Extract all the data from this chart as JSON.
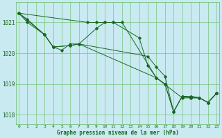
{
  "background_color": "#c8eaf0",
  "grid_color": "#66bb66",
  "line_color": "#1a6620",
  "xlabel": "Graphe pression niveau de la mer (hPa)",
  "ylim": [
    1017.7,
    1021.65
  ],
  "xlim": [
    -0.3,
    23.3
  ],
  "yticks": [
    1018,
    1019,
    1020,
    1021
  ],
  "xticks": [
    0,
    1,
    2,
    3,
    4,
    5,
    6,
    7,
    8,
    9,
    10,
    11,
    12,
    13,
    14,
    15,
    16,
    17,
    18,
    19,
    20,
    21,
    22,
    23
  ],
  "series": [
    {
      "x": [
        0,
        1,
        3,
        4,
        5,
        6,
        7,
        9,
        10,
        11,
        14,
        15,
        16,
        19,
        20,
        21,
        22,
        23
      ],
      "y": [
        1021.3,
        1021.0,
        1020.6,
        1020.2,
        1020.1,
        1020.3,
        1020.3,
        1020.8,
        1021.0,
        1021.0,
        1020.5,
        1019.6,
        1019.2,
        1018.55,
        1018.55,
        1018.55,
        1018.4,
        1018.7
      ]
    },
    {
      "x": [
        0,
        1,
        3,
        4,
        6,
        7,
        15,
        16,
        17,
        18,
        19,
        20,
        21,
        22,
        23
      ],
      "y": [
        1021.3,
        1021.1,
        1020.6,
        1020.2,
        1020.25,
        1020.3,
        1019.9,
        1019.55,
        1019.25,
        1018.1,
        1018.6,
        1018.55,
        1018.55,
        1018.4,
        1018.7
      ]
    },
    {
      "x": [
        0,
        3,
        4,
        6,
        7,
        16,
        17,
        18,
        19,
        20,
        21,
        22,
        23
      ],
      "y": [
        1021.3,
        1020.6,
        1020.2,
        1020.25,
        1020.3,
        1019.2,
        1019.0,
        1018.1,
        1018.6,
        1018.6,
        1018.55,
        1018.4,
        1018.7
      ]
    },
    {
      "x": [
        0,
        8,
        9,
        10,
        11,
        12,
        16,
        17,
        18,
        19,
        20,
        21,
        22,
        23
      ],
      "y": [
        1021.3,
        1021.0,
        1021.0,
        1021.0,
        1021.0,
        1021.0,
        1019.2,
        1019.0,
        1018.1,
        1018.6,
        1018.6,
        1018.55,
        1018.4,
        1018.7
      ]
    }
  ],
  "figsize": [
    3.2,
    2.0
  ],
  "dpi": 100
}
